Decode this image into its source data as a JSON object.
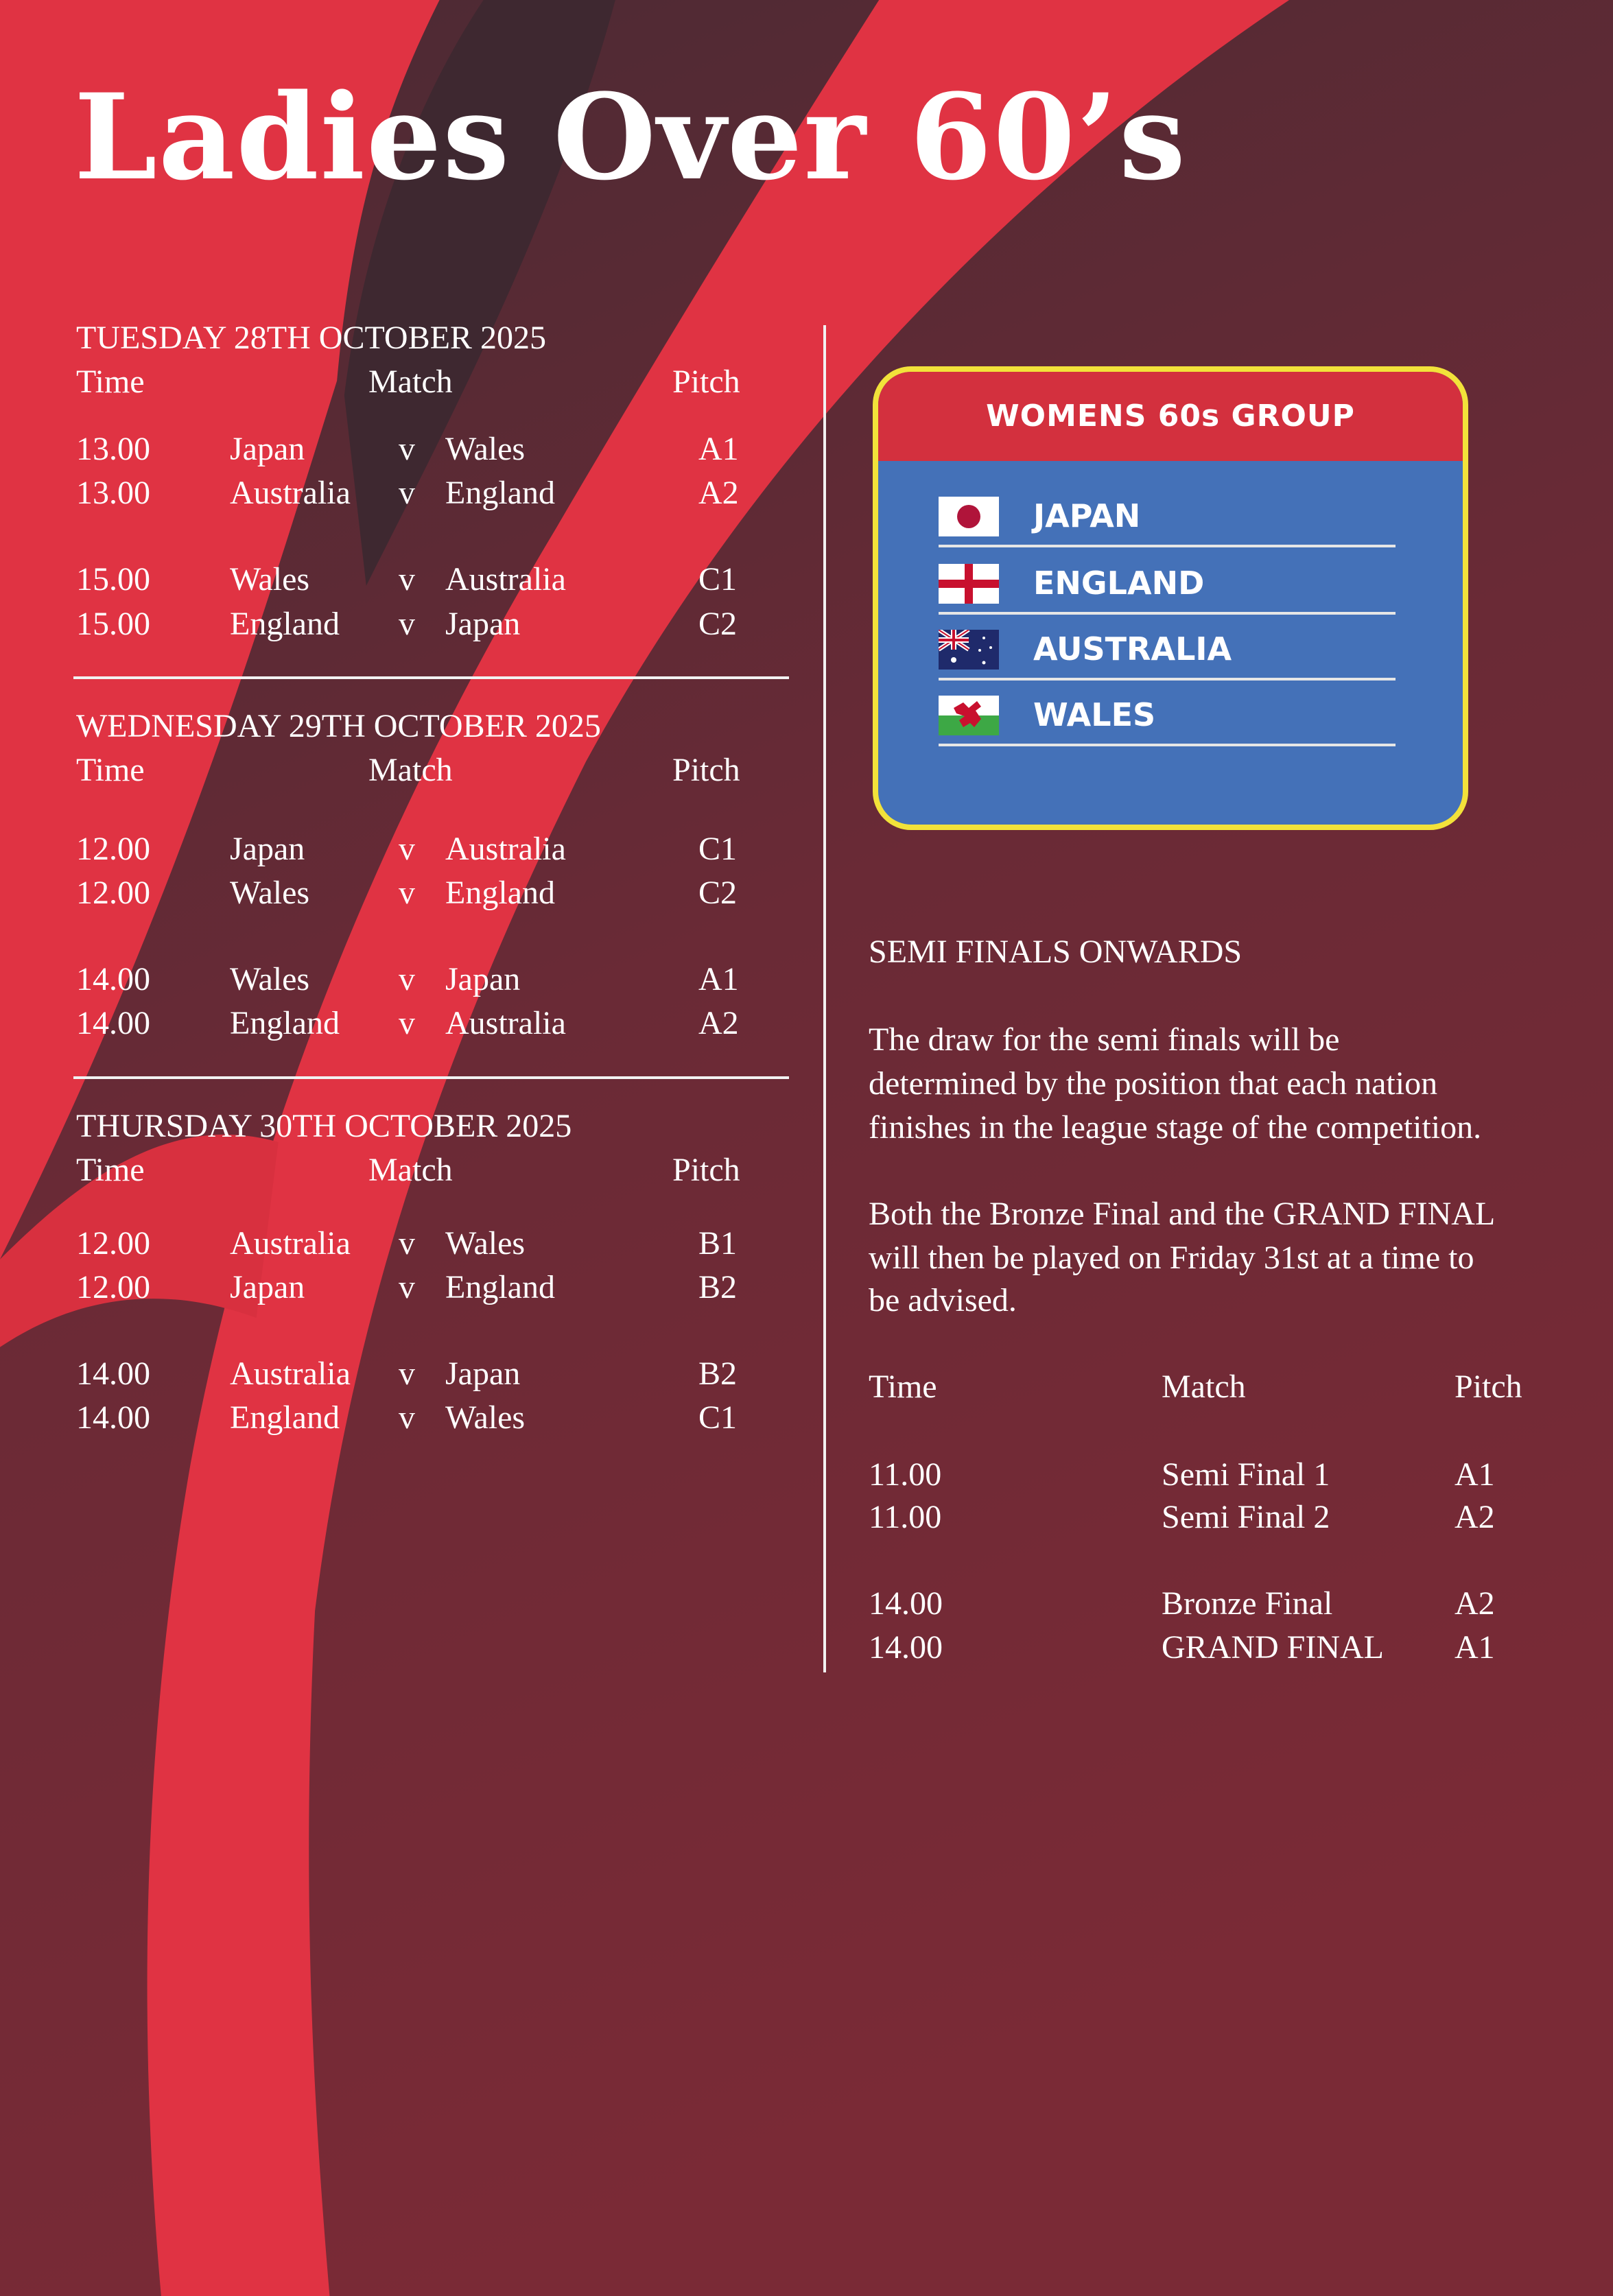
{
  "title": "Ladies Over 60’s",
  "colors": {
    "red": "#e03343",
    "maroon": "#5e2a36",
    "box_blue": "#4471b8",
    "box_border": "#f2e23a",
    "box_header": "#d3303e"
  },
  "days": [
    {
      "heading": "TUESDAY 28TH OCTOBER 2025",
      "headers": {
        "time": "Time",
        "match": "Match",
        "pitch": "Pitch"
      },
      "matches": [
        {
          "time": "13.00",
          "home": "Japan",
          "v": "v",
          "away": "Wales",
          "pitch": "A1"
        },
        {
          "time": "13.00",
          "home": "Australia",
          "v": "v",
          "away": "England",
          "pitch": "A2"
        },
        {
          "time": "15.00",
          "home": "Wales",
          "v": "v",
          "away": "Australia",
          "pitch": "C1"
        },
        {
          "time": "15.00",
          "home": "England",
          "v": "v",
          "away": "Japan",
          "pitch": "C2"
        }
      ]
    },
    {
      "heading": "WEDNESDAY 29TH OCTOBER 2025",
      "headers": {
        "time": "Time",
        "match": "Match",
        "pitch": "Pitch"
      },
      "matches": [
        {
          "time": "12.00",
          "home": "Japan",
          "v": "v",
          "away": "Australia",
          "pitch": "C1"
        },
        {
          "time": "12.00",
          "home": "Wales",
          "v": "v",
          "away": "England",
          "pitch": "C2"
        },
        {
          "time": "14.00",
          "home": "Wales",
          "v": "v",
          "away": "Japan",
          "pitch": "A1"
        },
        {
          "time": "14.00",
          "home": "England",
          "v": "v",
          "away": "Australia",
          "pitch": "A2"
        }
      ]
    },
    {
      "heading": "THURSDAY 30TH OCTOBER 2025",
      "headers": {
        "time": "Time",
        "match": "Match",
        "pitch": "Pitch"
      },
      "matches": [
        {
          "time": "12.00",
          "home": "Australia",
          "v": "v",
          "away": "Wales",
          "pitch": "B1"
        },
        {
          "time": "12.00",
          "home": "Japan",
          "v": "v",
          "away": "England",
          "pitch": "B2"
        },
        {
          "time": "14.00",
          "home": "Australia",
          "v": "v",
          "away": "Japan",
          "pitch": "B2"
        },
        {
          "time": "14.00",
          "home": "England",
          "v": "v",
          "away": "Wales",
          "pitch": "C1"
        }
      ]
    }
  ],
  "group": {
    "title": "WOMENS 60s GROUP",
    "teams": [
      {
        "name": "JAPAN",
        "flag": "japan-flag"
      },
      {
        "name": "ENGLAND",
        "flag": "england-flag"
      },
      {
        "name": "AUSTRALIA",
        "flag": "australia-flag"
      },
      {
        "name": "WALES",
        "flag": "wales-flag"
      }
    ]
  },
  "finals": {
    "heading": "SEMI FINALS ONWARDS",
    "para1": [
      "The draw for the semi finals will be",
      "determined by the position that each nation",
      "finishes in the league stage of the competition."
    ],
    "para2": [
      "Both the Bronze Final and the GRAND FINAL",
      "will then be played on Friday 31st at a time to",
      "be advised."
    ],
    "headers": {
      "time": "Time",
      "match": "Match",
      "pitch": "Pitch"
    },
    "matches": [
      {
        "time": "11.00",
        "match": "Semi Final 1",
        "pitch": "A1"
      },
      {
        "time": "11.00",
        "match": "Semi Final 2",
        "pitch": "A2"
      },
      {
        "time": "14.00",
        "match": "Bronze Final",
        "pitch": "A2"
      },
      {
        "time": "14.00",
        "match": "GRAND FINAL",
        "pitch": "A1"
      }
    ]
  }
}
